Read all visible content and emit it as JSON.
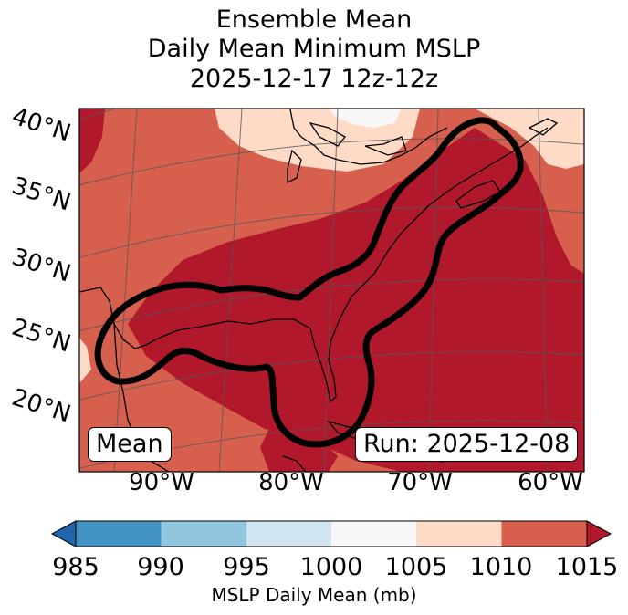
{
  "titles": [
    "Ensemble Mean",
    "Daily Mean Minimum MSLP",
    "2025-12-17 12z-12z"
  ],
  "labels": {
    "mode": "Mean",
    "run": "Run: 2025-12-08"
  },
  "latitude_ticks": [
    "40°N",
    "35°N",
    "30°N",
    "25°N",
    "20°N"
  ],
  "longitude_ticks": [
    "90°W",
    "80°W",
    "70°W",
    "60°W"
  ],
  "colorbar": {
    "label": "MSLP Daily Mean (mb)",
    "ticks": [
      "985",
      "990",
      "995",
      "1000",
      "1005",
      "1010",
      "1015"
    ],
    "colors": [
      "#2166ac",
      "#4393c3",
      "#92c5de",
      "#d1e5f0",
      "#f7f7f7",
      "#fddbc7",
      "#d6604d",
      "#b2182b"
    ]
  },
  "legend_regions": [
    {
      "color": "#fddbc7",
      "range": "1005-1010"
    },
    {
      "color": "#d6604d",
      "range": "1010-1015"
    },
    {
      "color": "#b2182b",
      "range": ">1015"
    }
  ]
}
